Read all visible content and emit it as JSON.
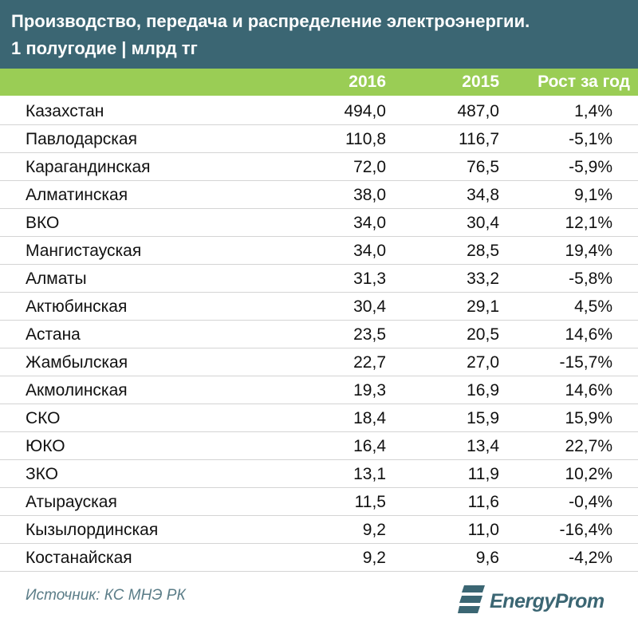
{
  "title_line1": "Производство, передача и распределение электроэнергии.",
  "title_line2": "1 полугодие | млрд тг",
  "chart_data": {
    "type": "table",
    "columns": [
      "2016",
      "2015",
      "Рост за год"
    ],
    "rows": [
      {
        "name": "Казахстан",
        "v2016": "494,0",
        "v2015": "487,0",
        "growth": "1,4%"
      },
      {
        "name": "Павлодарская",
        "v2016": "110,8",
        "v2015": "116,7",
        "growth": "-5,1%"
      },
      {
        "name": "Карагандинская",
        "v2016": "72,0",
        "v2015": "76,5",
        "growth": "-5,9%"
      },
      {
        "name": "Алматинская",
        "v2016": "38,0",
        "v2015": "34,8",
        "growth": "9,1%"
      },
      {
        "name": "ВКО",
        "v2016": "34,0",
        "v2015": "30,4",
        "growth": "12,1%"
      },
      {
        "name": "Мангистауская",
        "v2016": "34,0",
        "v2015": "28,5",
        "growth": "19,4%"
      },
      {
        "name": "Алматы",
        "v2016": "31,3",
        "v2015": "33,2",
        "growth": "-5,8%"
      },
      {
        "name": "Актюбинская",
        "v2016": "30,4",
        "v2015": "29,1",
        "growth": "4,5%"
      },
      {
        "name": "Астана",
        "v2016": "23,5",
        "v2015": "20,5",
        "growth": "14,6%"
      },
      {
        "name": "Жамбылская",
        "v2016": "22,7",
        "v2015": "27,0",
        "growth": "-15,7%"
      },
      {
        "name": "Акмолинская",
        "v2016": "19,3",
        "v2015": "16,9",
        "growth": "14,6%"
      },
      {
        "name": "СКО",
        "v2016": "18,4",
        "v2015": "15,9",
        "growth": "15,9%"
      },
      {
        "name": "ЮКО",
        "v2016": "16,4",
        "v2015": "13,4",
        "growth": "22,7%"
      },
      {
        "name": "ЗКО",
        "v2016": "13,1",
        "v2015": "11,9",
        "growth": "10,2%"
      },
      {
        "name": "Атырауская",
        "v2016": "11,5",
        "v2015": "11,6",
        "growth": "-0,4%"
      },
      {
        "name": "Кызылординская",
        "v2016": "9,2",
        "v2015": "11,0",
        "growth": "-16,4%"
      },
      {
        "name": "Костанайская",
        "v2016": "9,2",
        "v2015": "9,6",
        "growth": "-4,2%"
      }
    ]
  },
  "source": "Источник: КС МНЭ РК",
  "logo_text": "EnergyProm",
  "colors": {
    "header": "#3b6673",
    "column_header": "#9acd55",
    "source": "#5b7d88"
  }
}
